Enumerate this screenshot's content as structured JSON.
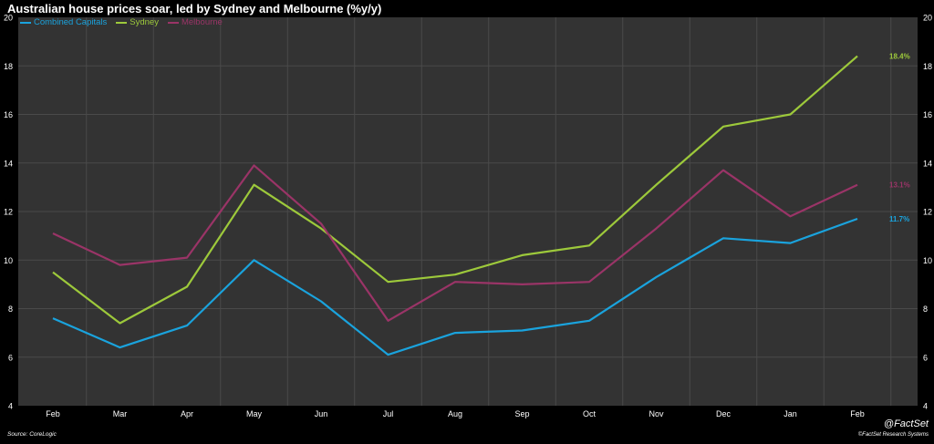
{
  "title": "Australian house prices soar, led by Sydney and Melbourne (%y/y)",
  "source": "Source: CoreLogic",
  "logo": "@FactSet",
  "copyright": "©FactSet Research Systems",
  "colors": {
    "background": "#333333",
    "grid": "#4a4a4a",
    "axis_text": "#ffffff"
  },
  "chart_data": {
    "type": "line",
    "categories": [
      "Feb",
      "Mar",
      "Apr",
      "May",
      "Jun",
      "Jul",
      "Aug",
      "Sep",
      "Oct",
      "Nov",
      "Dec",
      "Jan",
      "Feb"
    ],
    "ylim": [
      4,
      20
    ],
    "yticks": [
      "4",
      "6",
      "8",
      "10",
      "12",
      "14",
      "16",
      "18",
      "20"
    ],
    "legend_position": "top-left",
    "grid": true,
    "series": [
      {
        "name": "Combined Capitals",
        "color": "#1aa3dd",
        "values": [
          7.6,
          6.4,
          7.3,
          10.0,
          8.3,
          6.1,
          7.0,
          7.1,
          7.5,
          9.3,
          10.9,
          10.7,
          11.7
        ],
        "end_label": "11.7%"
      },
      {
        "name": "Sydney",
        "color": "#9dc93b",
        "values": [
          9.5,
          7.4,
          8.9,
          13.1,
          11.3,
          9.1,
          9.4,
          10.2,
          10.6,
          13.1,
          15.5,
          16.0,
          18.4
        ],
        "end_label": "18.4%"
      },
      {
        "name": "Melbourne",
        "color": "#9a3467",
        "values": [
          11.1,
          9.8,
          10.1,
          13.9,
          11.5,
          7.5,
          9.1,
          9.0,
          9.1,
          11.3,
          13.7,
          11.8,
          13.1
        ],
        "end_label": "13.1%"
      }
    ]
  }
}
